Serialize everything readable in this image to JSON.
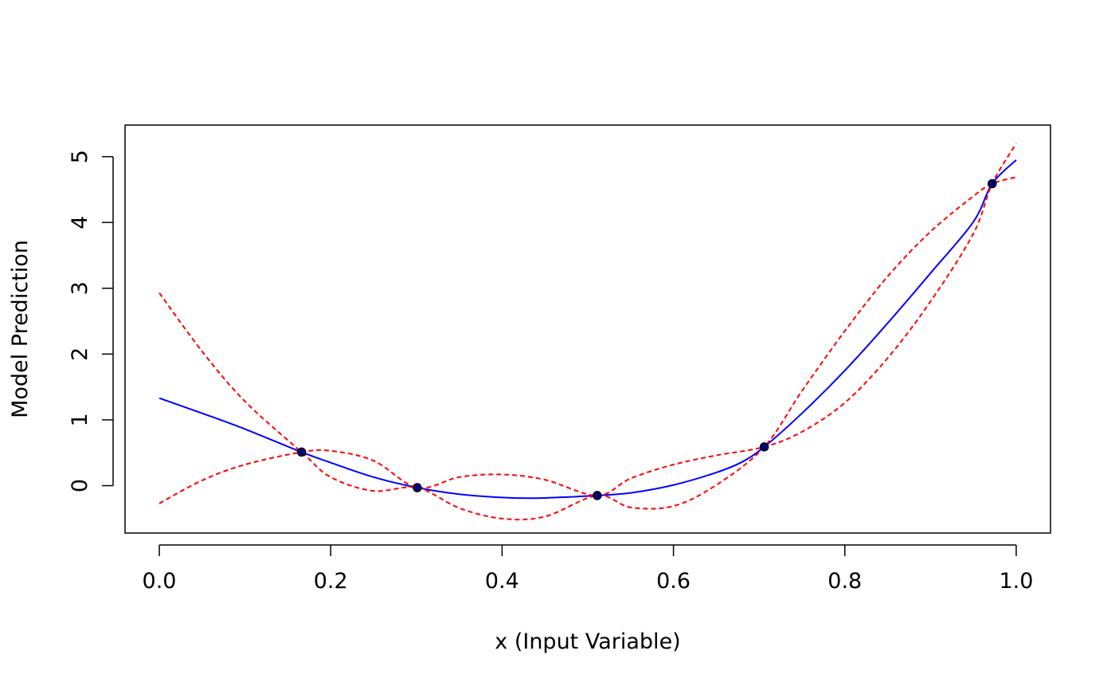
{
  "chart_data": {
    "type": "line",
    "title": "",
    "xlabel": "x (Input Variable)",
    "ylabel": "Model Prediction",
    "xlim": [
      -0.04,
      1.04
    ],
    "ylim": [
      -0.72,
      5.48
    ],
    "xticks": [
      0.0,
      0.2,
      0.4,
      0.6,
      0.8,
      1.0
    ],
    "xtick_labels": [
      "0.0",
      "0.2",
      "0.4",
      "0.6",
      "0.8",
      "1.0"
    ],
    "yticks": [
      0,
      1,
      2,
      3,
      4,
      5
    ],
    "ytick_labels": [
      "0",
      "1",
      "2",
      "3",
      "4",
      "5"
    ],
    "grid": false,
    "legend": "none",
    "colors": {
      "mean": "#0000ff",
      "bounds": "#ff0000",
      "points": "#000000",
      "point_fill": "#000080"
    },
    "points": {
      "x": [
        0.166,
        0.301,
        0.511,
        0.706,
        0.972
      ],
      "y": [
        0.51,
        -0.03,
        -0.15,
        0.59,
        4.59
      ]
    },
    "series": [
      {
        "style": "solid",
        "color": "#0000ff",
        "x": [
          0.0,
          0.05,
          0.1,
          0.166,
          0.2,
          0.25,
          0.301,
          0.35,
          0.4,
          0.44,
          0.48,
          0.511,
          0.55,
          0.6,
          0.65,
          0.68,
          0.706,
          0.75,
          0.8,
          0.85,
          0.9,
          0.95,
          0.972,
          1.0
        ],
        "y": [
          1.33,
          1.1,
          0.86,
          0.51,
          0.35,
          0.13,
          -0.03,
          -0.13,
          -0.18,
          -0.19,
          -0.17,
          -0.15,
          -0.11,
          0.01,
          0.2,
          0.36,
          0.59,
          1.1,
          1.75,
          2.47,
          3.23,
          4.01,
          4.59,
          4.95
        ]
      },
      {
        "style": "dashed",
        "color": "#ff0000",
        "x": [
          0.0,
          0.05,
          0.1,
          0.166,
          0.2,
          0.25,
          0.301,
          0.35,
          0.4,
          0.45,
          0.511,
          0.55,
          0.6,
          0.65,
          0.706,
          0.75,
          0.8,
          0.85,
          0.9,
          0.95,
          0.972,
          1.0
        ],
        "y": [
          -0.27,
          0.08,
          0.32,
          0.51,
          0.53,
          0.38,
          -0.03,
          0.13,
          0.17,
          0.09,
          -0.15,
          0.11,
          0.32,
          0.46,
          0.59,
          0.82,
          1.26,
          1.94,
          2.8,
          3.83,
          4.59,
          5.2
        ]
      },
      {
        "style": "dashed",
        "color": "#ff0000",
        "x": [
          0.0,
          0.05,
          0.1,
          0.166,
          0.2,
          0.25,
          0.301,
          0.35,
          0.4,
          0.45,
          0.511,
          0.55,
          0.6,
          0.65,
          0.706,
          0.75,
          0.8,
          0.85,
          0.9,
          0.95,
          0.972,
          1.0
        ],
        "y": [
          2.93,
          2.04,
          1.28,
          0.51,
          0.13,
          -0.08,
          -0.03,
          -0.34,
          -0.5,
          -0.47,
          -0.15,
          -0.33,
          -0.31,
          0.01,
          0.59,
          1.44,
          2.35,
          3.18,
          3.86,
          4.4,
          4.59,
          4.69
        ]
      }
    ]
  }
}
